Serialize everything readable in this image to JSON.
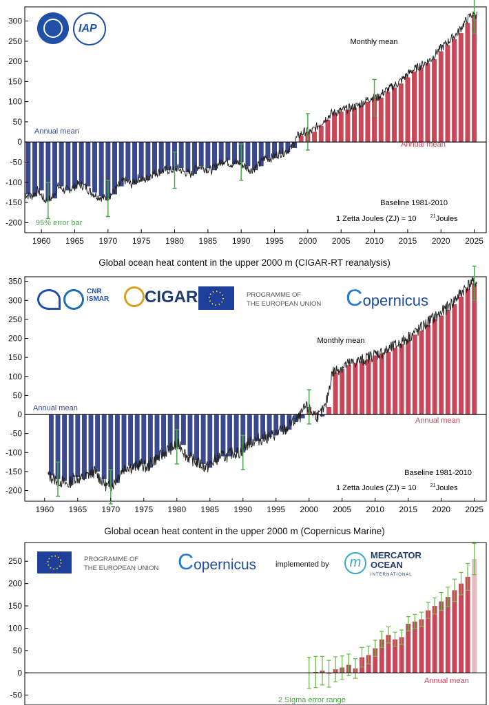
{
  "chart_data": [
    {
      "type": "bar",
      "title": "",
      "ylabel": "",
      "xlabel": "",
      "ylim": [
        -225,
        335
      ],
      "xlim": [
        1957.5,
        2026.8
      ],
      "yticks": [
        -200,
        -150,
        -100,
        -50,
        0,
        50,
        100,
        150,
        200,
        250,
        300
      ],
      "xticks": [
        1960,
        1965,
        1970,
        1975,
        1980,
        1985,
        1990,
        1995,
        2000,
        2005,
        2010,
        2015,
        2020,
        2025
      ],
      "years": [
        1958,
        1959,
        1960,
        1961,
        1962,
        1963,
        1964,
        1965,
        1966,
        1967,
        1968,
        1969,
        1970,
        1971,
        1972,
        1973,
        1974,
        1975,
        1976,
        1977,
        1978,
        1979,
        1980,
        1981,
        1982,
        1983,
        1984,
        1985,
        1986,
        1987,
        1988,
        1989,
        1990,
        1991,
        1992,
        1993,
        1994,
        1995,
        1996,
        1997,
        1998,
        1999,
        2000,
        2001,
        2002,
        2003,
        2004,
        2005,
        2006,
        2007,
        2008,
        2009,
        2010,
        2011,
        2012,
        2013,
        2014,
        2015,
        2016,
        2017,
        2018,
        2019,
        2020,
        2021,
        2022,
        2023,
        2024,
        2025
      ],
      "annual_mean": [
        -130,
        -135,
        -120,
        -145,
        -140,
        -110,
        -120,
        -115,
        -105,
        -110,
        -125,
        -135,
        -140,
        -130,
        -110,
        -95,
        -105,
        -90,
        -95,
        -80,
        -75,
        -70,
        -70,
        -65,
        -75,
        -80,
        -60,
        -65,
        -70,
        -55,
        -45,
        -55,
        -50,
        -60,
        -70,
        -60,
        -40,
        -40,
        -30,
        -25,
        -15,
        15,
        25,
        25,
        40,
        55,
        70,
        75,
        80,
        85,
        90,
        100,
        110,
        110,
        125,
        135,
        145,
        160,
        175,
        185,
        195,
        205,
        225,
        240,
        255,
        270,
        295,
        315
      ],
      "error_bar_years": [
        1961,
        1970,
        1980,
        1990,
        2000,
        2010,
        2025
      ],
      "annotations": {
        "monthly": "Monthly mean",
        "annual_left": "Annual mean",
        "annual_right": "Annual mean",
        "baseline": "Baseline 1981-2010",
        "unit": "1 Zetta Joules (ZJ) = 10",
        "unit_exp": "21",
        "unit_end": " Joules",
        "error": "95% error bar"
      },
      "colors": {
        "negative": "#3b4a8c",
        "positive": "#c8485a",
        "error": "#4aa84a",
        "line": "#222222"
      }
    },
    {
      "type": "bar",
      "title": "Global ocean heat content in the upper 2000 m (CIGAR-RT reanalysis)",
      "ylim": [
        -228,
        362
      ],
      "xlim": [
        1957,
        2026.8
      ],
      "yticks": [
        -200,
        -150,
        -100,
        -50,
        0,
        50,
        100,
        150,
        200,
        250,
        300,
        350
      ],
      "xticks": [
        1960,
        1965,
        1970,
        1975,
        1980,
        1985,
        1990,
        1995,
        2000,
        2005,
        2010,
        2015,
        2020,
        2025
      ],
      "years": [
        1961,
        1962,
        1963,
        1964,
        1965,
        1966,
        1967,
        1968,
        1969,
        1970,
        1971,
        1972,
        1973,
        1974,
        1975,
        1976,
        1977,
        1978,
        1979,
        1980,
        1981,
        1982,
        1983,
        1984,
        1985,
        1986,
        1987,
        1988,
        1989,
        1990,
        1991,
        1992,
        1993,
        1994,
        1995,
        1996,
        1997,
        1998,
        1999,
        2000,
        2001,
        2002,
        2003,
        2004,
        2005,
        2006,
        2007,
        2008,
        2009,
        2010,
        2011,
        2012,
        2013,
        2014,
        2015,
        2016,
        2017,
        2018,
        2019,
        2020,
        2021,
        2022,
        2023,
        2024,
        2025
      ],
      "annual_mean": [
        -160,
        -170,
        -175,
        -185,
        -165,
        -170,
        -160,
        -150,
        -170,
        -190,
        -180,
        -150,
        -135,
        -140,
        -130,
        -140,
        -120,
        -110,
        -95,
        -85,
        -80,
        -110,
        -120,
        -130,
        -140,
        -125,
        -110,
        -110,
        -100,
        -100,
        -80,
        -70,
        -65,
        -60,
        -55,
        -45,
        -40,
        -20,
        -10,
        20,
        5,
        -5,
        20,
        110,
        120,
        130,
        135,
        140,
        145,
        155,
        160,
        165,
        175,
        185,
        195,
        210,
        220,
        235,
        250,
        260,
        275,
        290,
        310,
        330,
        345
      ],
      "error_bar_years": [
        1962,
        1970,
        1980,
        1990,
        2000,
        2025
      ],
      "annotations": {
        "monthly": "Monthly mean",
        "annual_left": "Annual mean",
        "annual_right": "Annual mean",
        "baseline": "Baseline 1981-2010",
        "unit": "1 Zetta Joules (ZJ) = 10",
        "unit_exp": "21",
        "unit_end": " Joules"
      },
      "logos": {
        "cnr": "CNR",
        "ismar": "ISMAR",
        "cigar": "CIGAR",
        "programme_line1": "PROGRAMME OF",
        "programme_line2": "THE EUROPEAN UNION",
        "copernicus": "opernicus",
        "copernicus_c": "C"
      }
    },
    {
      "type": "bar",
      "title": "Global ocean heat content in the upper 2000 m (Copernicus Marine)",
      "ylim": [
        -72,
        292
      ],
      "xlim": [
        1957,
        2026.8
      ],
      "yticks": [
        -50,
        0,
        50,
        100,
        150,
        200,
        250
      ],
      "years": [
        2000,
        2001,
        2002,
        2003,
        2004,
        2005,
        2006,
        2007,
        2008,
        2009,
        2010,
        2011,
        2012,
        2013,
        2014,
        2015,
        2016,
        2017,
        2018,
        2019,
        2020,
        2021,
        2022,
        2023,
        2024,
        2025
      ],
      "annual_mean": [
        0,
        2,
        5,
        -2,
        8,
        12,
        18,
        10,
        35,
        40,
        55,
        75,
        85,
        75,
        80,
        110,
        115,
        120,
        140,
        150,
        160,
        170,
        185,
        200,
        215,
        255
      ],
      "errors": [
        35,
        35,
        32,
        30,
        28,
        26,
        24,
        22,
        22,
        20,
        18,
        18,
        18,
        16,
        16,
        16,
        16,
        16,
        18,
        18,
        20,
        22,
        25,
        25,
        30,
        35
      ],
      "annotations": {
        "annual_right": "Annual mean",
        "error": "2 Sigma error range",
        "implemented": "implemented by",
        "mercator1": "MERCATOR",
        "mercator2": "OCEAN",
        "mercator3": "INTERNATIONAL",
        "programme_line1": "PROGRAMME OF",
        "programme_line2": "THE EUROPEAN UNION",
        "copernicus": "opernicus",
        "copernicus_c": "C"
      }
    }
  ]
}
